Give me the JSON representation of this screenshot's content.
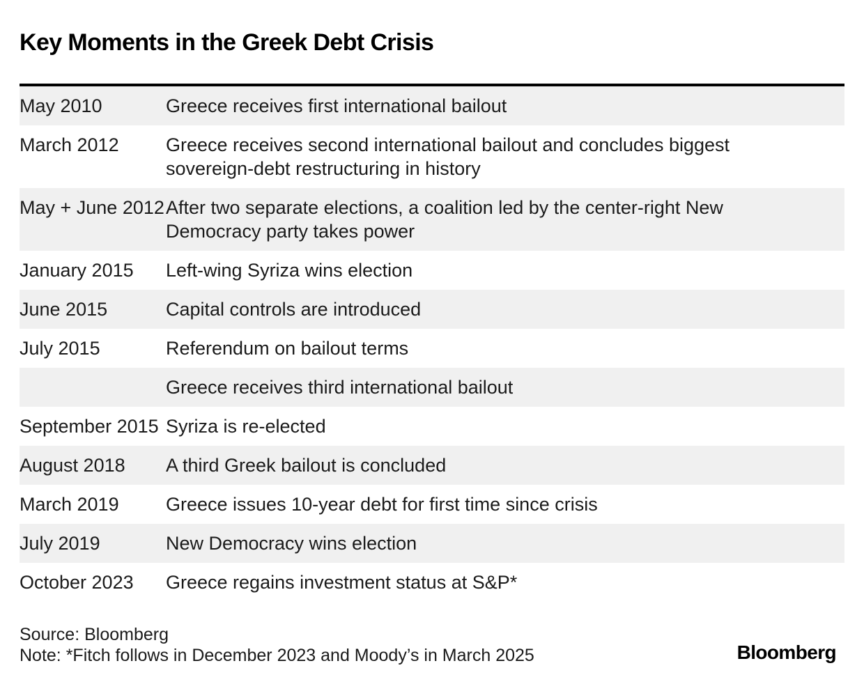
{
  "title": "Key Moments in the Greek Debt Crisis",
  "chart_data": {
    "type": "table",
    "title": "Key Moments in the Greek Debt Crisis",
    "rows": [
      {
        "date": "May 2010",
        "event": "Greece receives first international bailout"
      },
      {
        "date": "March 2012",
        "event": "Greece receives second international bailout and concludes biggest sovereign-debt restructuring in history"
      },
      {
        "date": "May + June 2012",
        "event": "After two separate elections, a coalition led by the center-right New Democracy party takes power"
      },
      {
        "date": "January 2015",
        "event": "Left-wing Syriza wins election"
      },
      {
        "date": "June 2015",
        "event": "Capital controls are introduced"
      },
      {
        "date": "July 2015",
        "event": "Referendum on bailout terms"
      },
      {
        "date": "",
        "event": "Greece receives third international bailout"
      },
      {
        "date": "September 2015",
        "event": "Syriza is re-elected"
      },
      {
        "date": "August 2018",
        "event": "A third Greek bailout is concluded"
      },
      {
        "date": "March 2019",
        "event": "Greece issues 10-year debt for first time since crisis"
      },
      {
        "date": "July 2019",
        "event": "New Democracy wins election"
      },
      {
        "date": "October 2023",
        "event": "Greece regains investment status at S&P*"
      }
    ]
  },
  "footer": {
    "source": "Source: Bloomberg",
    "note": "Note: *Fitch follows in December 2023 and Moody’s in March 2025"
  },
  "logo": "Bloomberg",
  "colors": {
    "shaded_row": "#f0f0f0",
    "rule": "#000000"
  }
}
